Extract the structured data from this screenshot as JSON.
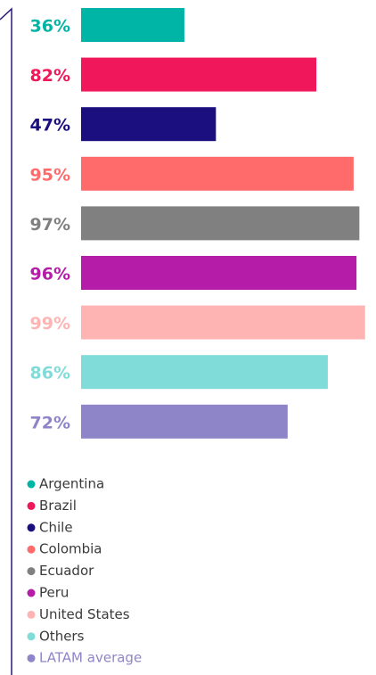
{
  "chart_data": {
    "type": "barh",
    "categories": [
      "Argentina",
      "Brazil",
      "Chile",
      "Colombia",
      "Ecuador",
      "Peru",
      "United States",
      "Others",
      "LATAM average"
    ],
    "values": [
      36,
      82,
      47,
      95,
      97,
      96,
      99,
      86,
      72
    ],
    "value_labels": [
      "36%",
      "82%",
      "47%",
      "95%",
      "97%",
      "96%",
      "99%",
      "86%",
      "72%"
    ],
    "colors": [
      "#00b5a5",
      "#f0185a",
      "#1b0f80",
      "#ff6b6b",
      "#808080",
      "#b51ca8",
      "#ffb4b4",
      "#80dcd8",
      "#8e85c8"
    ],
    "xlim": [
      0,
      100
    ]
  }
}
